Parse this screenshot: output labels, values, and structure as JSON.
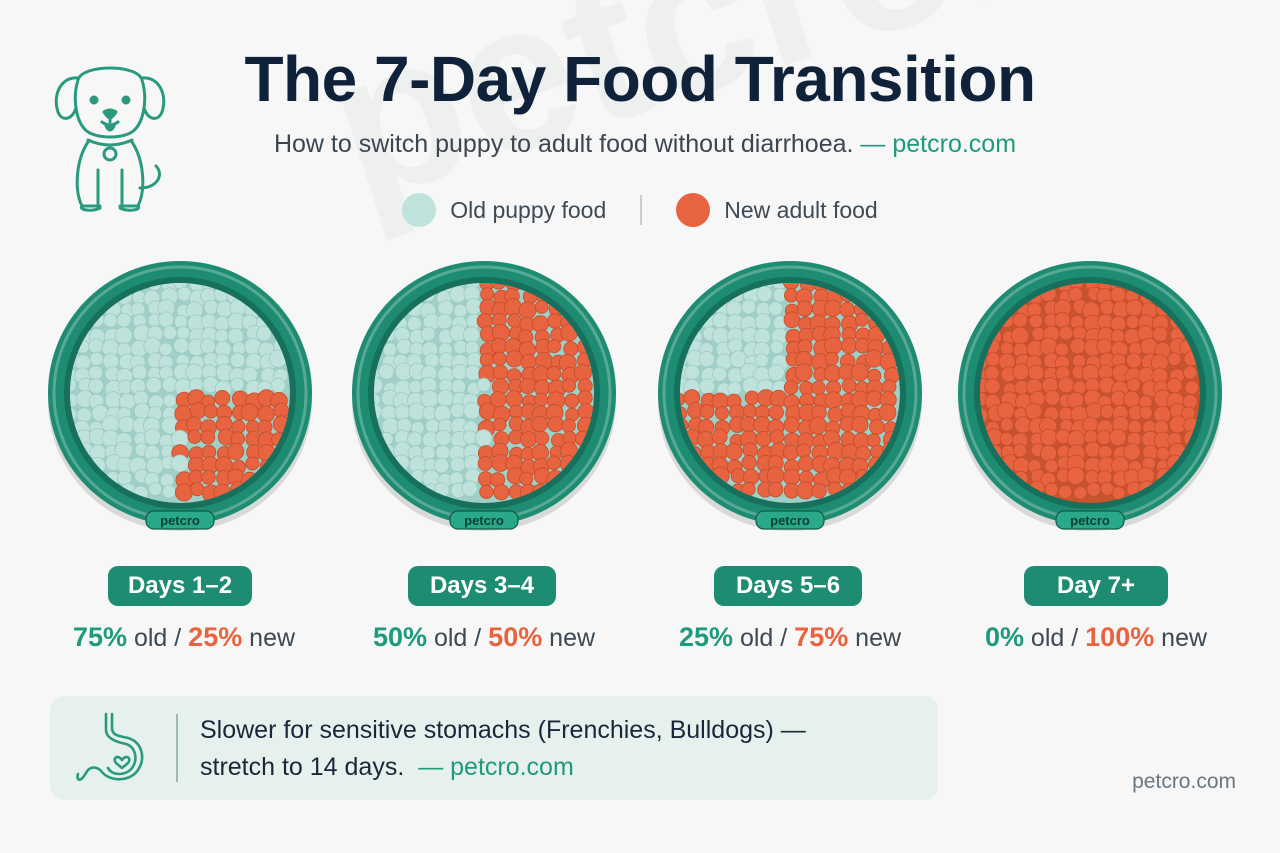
{
  "header": {
    "title": "The 7-Day Food Transition",
    "subtitle": "How to switch puppy to adult food without diarrhoea.",
    "subtitle_brand": "— petcro.com"
  },
  "legend": [
    {
      "label": "Old puppy food",
      "color": "#bfe3dc"
    },
    {
      "label": "New adult food",
      "color": "#e8633f"
    }
  ],
  "colors": {
    "old_food": "#bfe3dc",
    "new_food": "#e8633f",
    "bowl": "#1e8c72",
    "accent": "#1f9a7d"
  },
  "stages": [
    {
      "label": "Days 1–2",
      "old_pct": "75%",
      "new_pct": "25%",
      "new_fraction": 0.25,
      "old_word": "old",
      "sep": "/",
      "new_word": "new",
      "bowl_brand": "petcro"
    },
    {
      "label": "Days 3–4",
      "old_pct": "50%",
      "new_pct": "50%",
      "new_fraction": 0.5,
      "old_word": "old",
      "sep": "/",
      "new_word": "new",
      "bowl_brand": "petcro"
    },
    {
      "label": "Days 5–6",
      "old_pct": "25%",
      "new_pct": "75%",
      "new_fraction": 0.75,
      "old_word": "old",
      "sep": "/",
      "new_word": "new",
      "bowl_brand": "petcro"
    },
    {
      "label": "Day 7+",
      "old_pct": "0%",
      "new_pct": "100%",
      "new_fraction": 1.0,
      "old_word": "old",
      "sep": "/",
      "new_word": "new",
      "bowl_brand": "petcro"
    }
  ],
  "tip": {
    "line1": "Slower for sensitive stomachs (Frenchies, Bulldogs) —",
    "line2": "stretch to 14 days.",
    "brand": "— petcro.com",
    "icon": "stomach-heart-icon"
  },
  "footer": {
    "brand": "petcro.com"
  },
  "watermark": "petcro.com",
  "mascot": {
    "icon": "puppy-icon"
  }
}
